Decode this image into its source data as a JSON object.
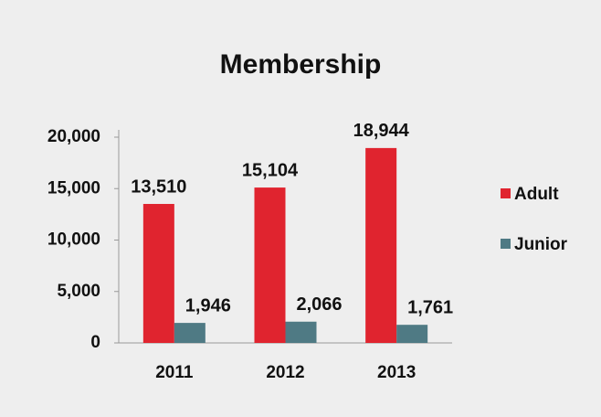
{
  "chart_data": {
    "type": "bar",
    "title": "Membership",
    "categories": [
      "2011",
      "2012",
      "2013"
    ],
    "series": [
      {
        "name": "Adult",
        "color": "#e0242f",
        "values": [
          13510,
          15104,
          18944
        ],
        "value_labels": [
          "13,510",
          "15,104",
          "18,944"
        ]
      },
      {
        "name": "Junior",
        "color": "#4f7a84",
        "values": [
          1946,
          2066,
          1761
        ],
        "value_labels": [
          "1,946",
          "2,066",
          "1,761"
        ]
      }
    ],
    "ylim": [
      0,
      20000
    ],
    "yticks": [
      0,
      {
        "value": 5000,
        "label": "5,000"
      },
      {
        "value": 10000,
        "label": "10,000"
      },
      {
        "value": 15000,
        "label": "15,000"
      },
      {
        "value": 20000,
        "label": "20,000"
      }
    ],
    "legend": "right"
  }
}
